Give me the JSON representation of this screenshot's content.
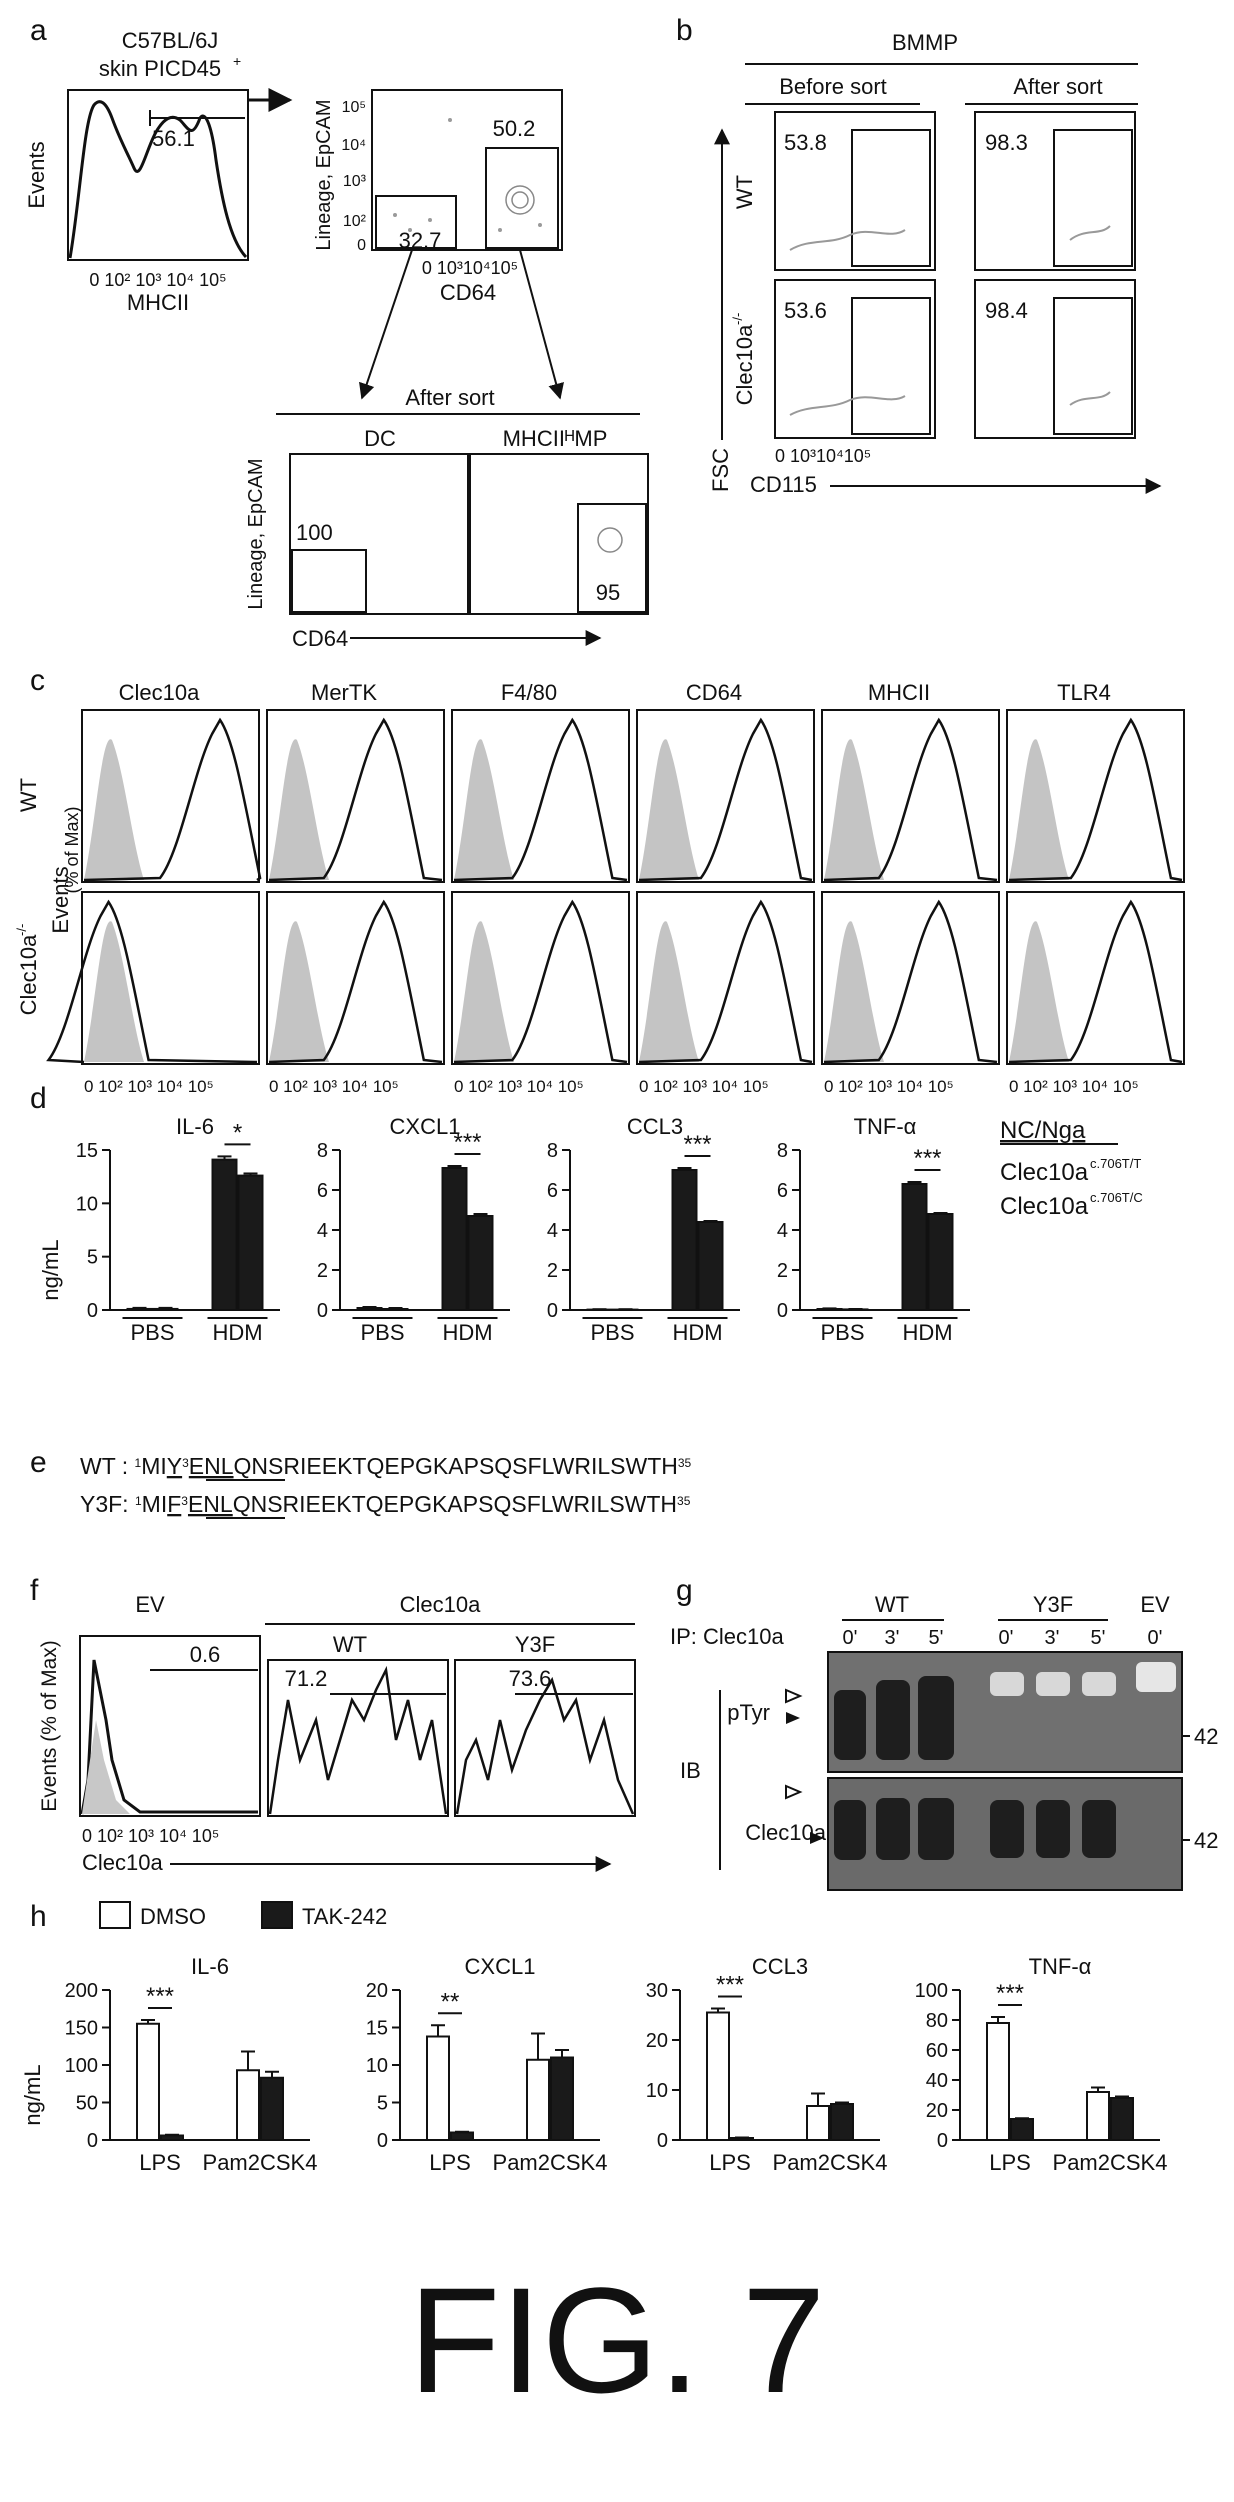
{
  "figure_label": "FIG. 7",
  "panel_a": {
    "letter": "a",
    "title_line1": "C57BL/6J",
    "title_line2": "skin PICD45",
    "title_sup": "+",
    "hist_gate_value": "56.1",
    "hist_xlabel": "MHCII",
    "hist_ylabel": "Events",
    "hist_xticks": "0 10² 10³ 10⁴ 10⁵",
    "dot_ylabel": "Lineage, EpCAM",
    "dot_yticks": [
      "10⁵",
      "10⁴",
      "10³",
      "10²",
      "0"
    ],
    "dot_xticks": "0   10³10⁴10⁵",
    "dot_xlabel": "CD64",
    "gate_right_value": "50.2",
    "gate_left_value": "32.7",
    "after_sort_title": "After sort",
    "sub_titles": [
      "DC",
      "MHCIIᴴMP"
    ],
    "dc_value": "100",
    "mp_value": "95",
    "sort_ylabel": "Lineage, EpCAM",
    "sort_xlabel": "CD64"
  },
  "panel_b": {
    "letter": "b",
    "title": "BMMP",
    "col_titles": [
      "Before sort",
      "After sort"
    ],
    "row_labels": [
      "WT",
      "Clec10a"
    ],
    "row_label_sup": "-/-",
    "values": [
      [
        "53.8",
        "98.3"
      ],
      [
        "53.6",
        "98.4"
      ]
    ],
    "ylabel": "FSC",
    "xlabel": "CD115",
    "xticks": "0 10³10⁴10⁵"
  },
  "panel_c": {
    "letter": "c",
    "markers": [
      "Clec10a",
      "MerTK",
      "F4/80",
      "CD64",
      "MHCII",
      "TLR4"
    ],
    "row_labels": [
      "WT",
      "Clec10a"
    ],
    "row_label_sup": "-/-",
    "ylabel_line1": "Events",
    "ylabel_line2": "(% of Max)",
    "xticks": "0 10² 10³ 10⁴ 10⁵"
  },
  "panel_d": {
    "letter": "d",
    "ylabel": "ng/mL",
    "legend_title": "NC/Nga",
    "legend_entries": [
      {
        "label": "Clec10a",
        "sup": "c.706T/T"
      },
      {
        "label": "Clec10a",
        "sup": "c.706T/C"
      }
    ]
  },
  "panel_e": {
    "letter": "e",
    "rows": [
      {
        "label": "WT : ",
        "start": "1",
        "a": "MI",
        "b": "Y",
        "pos": "3",
        "c": "ENL",
        "d": "QNSRIEEKTQEPGKAPSQSFLWRILSWTH",
        "end": "35"
      },
      {
        "label": "Y3F: ",
        "start": "1",
        "a": "MI",
        "b": "F",
        "pos": "3",
        "c": "ENL",
        "d": "QNSRIEEKTQEPGKAPSQSFLWRILSWTH",
        "end": "35"
      }
    ]
  },
  "panel_f": {
    "letter": "f",
    "titles": [
      "EV",
      "Clec10a",
      "WT",
      "Y3F"
    ],
    "values": [
      "0.6",
      "71.2",
      "73.6"
    ],
    "ylabel": "Events (% of Max)",
    "xlabel": "Clec10a",
    "xticks": "0 10² 10³ 10⁴ 10⁵"
  },
  "panel_g": {
    "letter": "g",
    "ip_label": "IP: Clec10a",
    "group_labels": [
      "WT",
      "Y3F",
      "EV"
    ],
    "times": [
      "0'",
      "3'",
      "5'",
      "0'",
      "3'",
      "5'",
      "0'"
    ],
    "ib_label": "IB",
    "blot_labels": [
      "pTyr",
      "Clec10a"
    ],
    "mw": [
      "42",
      "42"
    ]
  },
  "panel_h": {
    "letter": "h",
    "legend": [
      "DMSO",
      "TAK-242"
    ],
    "ylabel": "ng/mL"
  },
  "chart_data": [
    {
      "type": "bar",
      "panel": "d",
      "title": "IL-6",
      "categories": [
        "PBS",
        "HDM"
      ],
      "series": [
        {
          "name": "Clec10a c.706T/T",
          "values": [
            0.1,
            14.1
          ]
        },
        {
          "name": "Clec10a c.706T/C",
          "values": [
            0.1,
            12.6
          ]
        }
      ],
      "errors": [
        [
          0.1,
          0.3
        ],
        [
          0.1,
          0.2
        ]
      ],
      "ylim": [
        0,
        15
      ],
      "yticks": [
        0,
        5,
        10,
        15
      ],
      "significance": "*"
    },
    {
      "type": "bar",
      "panel": "d",
      "title": "CXCL1",
      "categories": [
        "PBS",
        "HDM"
      ],
      "series": [
        {
          "name": "Clec10a c.706T/T",
          "values": [
            0.1,
            7.1
          ]
        },
        {
          "name": "Clec10a c.706T/C",
          "values": [
            0.05,
            4.7
          ]
        }
      ],
      "errors": [
        [
          0.05,
          0.1
        ],
        [
          0.05,
          0.1
        ]
      ],
      "ylim": [
        0,
        8
      ],
      "yticks": [
        0,
        2,
        4,
        6,
        8
      ],
      "significance": "***"
    },
    {
      "type": "bar",
      "panel": "d",
      "title": "CCL3",
      "categories": [
        "PBS",
        "HDM"
      ],
      "series": [
        {
          "name": "Clec10a c.706T/T",
          "values": [
            0.02,
            7.0
          ]
        },
        {
          "name": "Clec10a c.706T/C",
          "values": [
            0.02,
            4.4
          ]
        }
      ],
      "errors": [
        [
          0.02,
          0.1
        ],
        [
          0.02,
          0.05
        ]
      ],
      "ylim": [
        0,
        8
      ],
      "yticks": [
        0,
        2,
        4,
        6,
        8
      ],
      "significance": "***"
    },
    {
      "type": "bar",
      "panel": "d",
      "title": "TNF-α",
      "categories": [
        "PBS",
        "HDM"
      ],
      "series": [
        {
          "name": "Clec10a c.706T/T",
          "values": [
            0.05,
            6.3
          ]
        },
        {
          "name": "Clec10a c.706T/C",
          "values": [
            0.03,
            4.8
          ]
        }
      ],
      "errors": [
        [
          0.03,
          0.1
        ],
        [
          0.02,
          0.05
        ]
      ],
      "ylim": [
        0,
        8
      ],
      "yticks": [
        0,
        2,
        4,
        6,
        8
      ],
      "significance": "***"
    },
    {
      "type": "bar",
      "panel": "h",
      "title": "IL-6",
      "categories": [
        "LPS",
        "Pam2CSK4"
      ],
      "series": [
        {
          "name": "DMSO",
          "values": [
            155,
            93
          ]
        },
        {
          "name": "TAK-242",
          "values": [
            6,
            83
          ]
        }
      ],
      "errors": [
        [
          5,
          25
        ],
        [
          1,
          8
        ]
      ],
      "ylim": [
        0,
        200
      ],
      "yticks": [
        0,
        50,
        100,
        150,
        200
      ],
      "significance": "***"
    },
    {
      "type": "bar",
      "panel": "h",
      "title": "CXCL1",
      "categories": [
        "LPS",
        "Pam2CSK4"
      ],
      "series": [
        {
          "name": "DMSO",
          "values": [
            13.8,
            10.7
          ]
        },
        {
          "name": "TAK-242",
          "values": [
            1.0,
            11.0
          ]
        }
      ],
      "errors": [
        [
          1.5,
          3.5
        ],
        [
          0.1,
          1.0
        ]
      ],
      "ylim": [
        0,
        20
      ],
      "yticks": [
        0,
        5,
        10,
        15,
        20
      ],
      "significance": "**"
    },
    {
      "type": "bar",
      "panel": "h",
      "title": "CCL3",
      "categories": [
        "LPS",
        "Pam2CSK4"
      ],
      "series": [
        {
          "name": "DMSO",
          "values": [
            25.5,
            6.8
          ]
        },
        {
          "name": "TAK-242",
          "values": [
            0.4,
            7.2
          ]
        }
      ],
      "errors": [
        [
          0.8,
          2.5
        ],
        [
          0.1,
          0.3
        ]
      ],
      "ylim": [
        0,
        30
      ],
      "yticks": [
        0,
        10,
        20,
        30
      ],
      "significance": "***"
    },
    {
      "type": "bar",
      "panel": "h",
      "title": "TNF-α",
      "categories": [
        "LPS",
        "Pam2CSK4"
      ],
      "series": [
        {
          "name": "DMSO",
          "values": [
            78,
            32
          ]
        },
        {
          "name": "TAK-242",
          "values": [
            14,
            28
          ]
        }
      ],
      "errors": [
        [
          4,
          3
        ],
        [
          0.5,
          1
        ]
      ],
      "ylim": [
        0,
        100
      ],
      "yticks": [
        0,
        20,
        40,
        60,
        80,
        100
      ],
      "significance": "***"
    }
  ],
  "colors": {
    "ink": "#111111",
    "fill_dark": "#1a1a1a",
    "fill_white": "#ffffff",
    "dots": "#9a9a9a",
    "blot_bg": "#7a7a7a"
  }
}
